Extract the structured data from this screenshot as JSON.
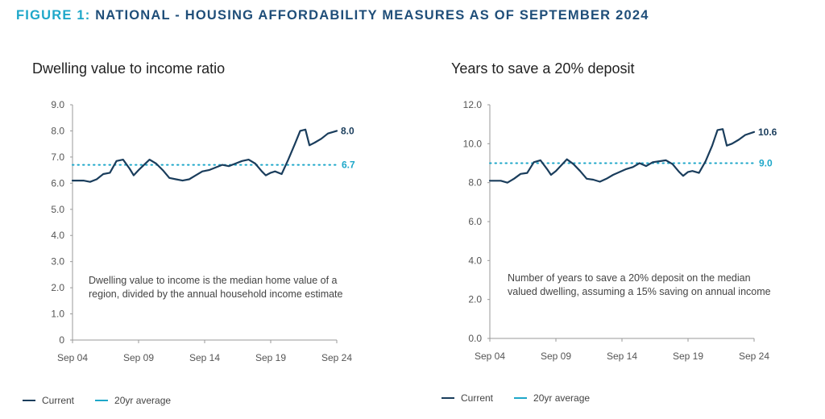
{
  "figure": {
    "label": "FIGURE 1:",
    "title": "NATIONAL - HOUSING AFFORDABILITY MEASURES AS OF SEPTEMBER 2024"
  },
  "legend": {
    "current": "Current",
    "average": "20yr average"
  },
  "colors": {
    "current": "#1a3d5c",
    "average": "#1ea7c9",
    "title": "#1f4e79",
    "axis": "#999999"
  },
  "chart_data": [
    {
      "type": "line",
      "title": "Dwelling value to income ratio",
      "annotation": [
        "Dwelling value to income is the median home value of a",
        "region, divided by the annual household income estimate"
      ],
      "xlabel": "",
      "ylabel": "",
      "ylim": [
        0,
        9
      ],
      "yticks": [
        0,
        1,
        2,
        3,
        4,
        5,
        6,
        7,
        8,
        9
      ],
      "ytick_labels": [
        "0",
        "1.0",
        "2.0",
        "3.0",
        "4.0",
        "5.0",
        "6.0",
        "7.0",
        "8.0",
        "9.0"
      ],
      "xlim": [
        2004.67,
        2024.67
      ],
      "xticks": [
        2004.67,
        2009.67,
        2014.67,
        2019.67,
        2024.67
      ],
      "xtick_labels": [
        "Sep 04",
        "Sep 09",
        "Sep 14",
        "Sep 19",
        "Sep 24"
      ],
      "grid": false,
      "legend_position": "bottom-left",
      "average_value": 6.7,
      "average_label": "6.7",
      "end_label": "8.0",
      "series": [
        {
          "name": "Current",
          "x": [
            2004.67,
            2005.5,
            2006.0,
            2006.5,
            2007.0,
            2007.5,
            2008.0,
            2008.5,
            2009.0,
            2009.3,
            2009.67,
            2010.5,
            2011.0,
            2011.5,
            2012.0,
            2012.5,
            2013.0,
            2013.5,
            2014.0,
            2014.5,
            2015.0,
            2015.5,
            2016.0,
            2016.5,
            2017.0,
            2017.5,
            2018.0,
            2018.5,
            2019.0,
            2019.3,
            2019.67,
            2020.0,
            2020.5,
            2021.0,
            2021.5,
            2021.9,
            2022.3,
            2022.6,
            2023.0,
            2023.5,
            2024.0,
            2024.67
          ],
          "values": [
            6.1,
            6.1,
            6.05,
            6.15,
            6.35,
            6.4,
            6.85,
            6.9,
            6.55,
            6.3,
            6.5,
            6.9,
            6.75,
            6.5,
            6.2,
            6.15,
            6.1,
            6.15,
            6.3,
            6.45,
            6.5,
            6.6,
            6.7,
            6.65,
            6.75,
            6.85,
            6.9,
            6.75,
            6.45,
            6.3,
            6.4,
            6.45,
            6.35,
            6.9,
            7.5,
            8.0,
            8.05,
            7.45,
            7.55,
            7.7,
            7.9,
            8.0
          ]
        }
      ]
    },
    {
      "type": "line",
      "title": "Years to save a 20% deposit",
      "annotation": [
        "Number of years to save a 20% deposit on the median",
        "valued dwelling, assuming a 15% saving on annual income"
      ],
      "xlabel": "",
      "ylabel": "",
      "ylim": [
        0,
        12
      ],
      "yticks": [
        0,
        2,
        4,
        6,
        8,
        10,
        12
      ],
      "ytick_labels": [
        "0.0",
        "2.0",
        "4.0",
        "6.0",
        "8.0",
        "10.0",
        "12.0"
      ],
      "xlim": [
        2004.67,
        2024.67
      ],
      "xticks": [
        2004.67,
        2009.67,
        2014.67,
        2019.67,
        2024.67
      ],
      "xtick_labels": [
        "Sep 04",
        "Sep 09",
        "Sep 14",
        "Sep 19",
        "Sep 24"
      ],
      "grid": false,
      "legend_position": "bottom-left",
      "average_value": 9.0,
      "average_label": "9.0",
      "end_label": "10.6",
      "series": [
        {
          "name": "Current",
          "x": [
            2004.67,
            2005.5,
            2006.0,
            2006.5,
            2007.0,
            2007.5,
            2008.0,
            2008.5,
            2009.0,
            2009.3,
            2009.67,
            2010.5,
            2011.0,
            2011.5,
            2012.0,
            2012.5,
            2013.0,
            2013.5,
            2014.0,
            2014.5,
            2015.0,
            2015.5,
            2016.0,
            2016.5,
            2017.0,
            2017.5,
            2018.0,
            2018.5,
            2019.0,
            2019.3,
            2019.67,
            2020.0,
            2020.5,
            2021.0,
            2021.5,
            2021.9,
            2022.3,
            2022.6,
            2023.0,
            2023.5,
            2024.0,
            2024.67
          ],
          "values": [
            8.1,
            8.1,
            8.0,
            8.2,
            8.45,
            8.5,
            9.05,
            9.15,
            8.7,
            8.4,
            8.6,
            9.2,
            8.95,
            8.6,
            8.2,
            8.15,
            8.05,
            8.2,
            8.4,
            8.55,
            8.7,
            8.8,
            9.0,
            8.85,
            9.05,
            9.1,
            9.15,
            8.95,
            8.55,
            8.35,
            8.55,
            8.6,
            8.5,
            9.1,
            9.9,
            10.7,
            10.75,
            9.9,
            10.0,
            10.2,
            10.45,
            10.6
          ]
        }
      ]
    }
  ]
}
